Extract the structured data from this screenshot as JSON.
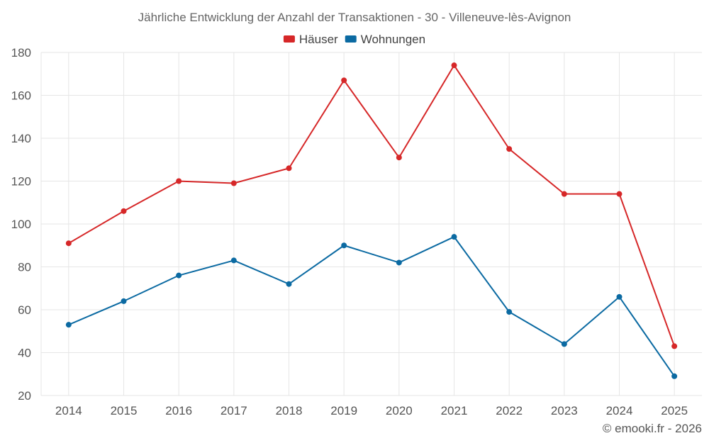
{
  "chart_data": {
    "type": "line",
    "title": "Jährliche Entwicklung der Anzahl der Transaktionen - 30 - Villeneuve-lès-Avignon",
    "categories": [
      "2014",
      "2015",
      "2016",
      "2017",
      "2018",
      "2019",
      "2020",
      "2021",
      "2022",
      "2023",
      "2024",
      "2025"
    ],
    "series": [
      {
        "name": "Häuser",
        "color": "#d62728",
        "values": [
          91,
          106,
          120,
          119,
          126,
          167,
          131,
          174,
          135,
          114,
          114,
          43
        ]
      },
      {
        "name": "Wohnungen",
        "color": "#0b6aa2",
        "values": [
          53,
          64,
          76,
          83,
          72,
          90,
          82,
          94,
          59,
          44,
          66,
          29
        ]
      }
    ],
    "ylim": [
      20,
      180
    ],
    "yticks": [
      20,
      40,
      60,
      80,
      100,
      120,
      140,
      160,
      180
    ],
    "grid": true,
    "legend": "top-center",
    "xlabel": "",
    "ylabel": ""
  },
  "credit": "© emooki.fr - 2026"
}
